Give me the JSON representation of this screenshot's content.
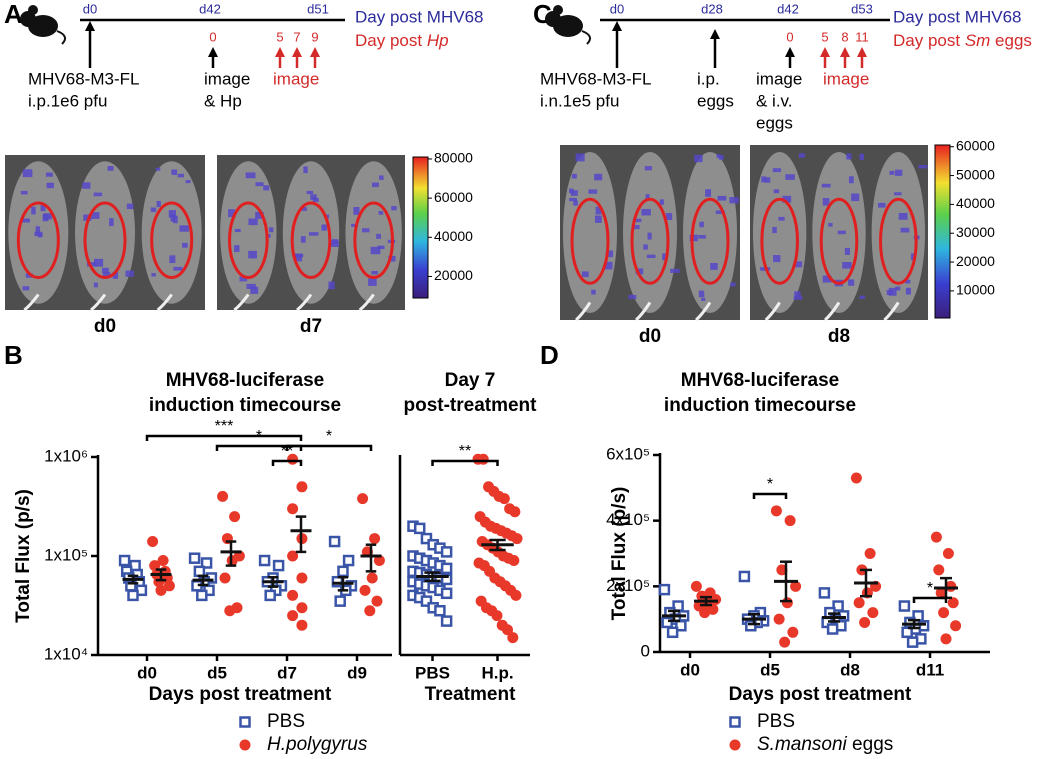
{
  "panel_labels": [
    "A",
    "B",
    "C",
    "D"
  ],
  "timelines": [
    {
      "days": [
        "d0",
        "d42",
        "d51"
      ],
      "legend_virus": "Day post MHV68",
      "legend_treatment": [
        "Day post ",
        "Hp"
      ],
      "treat_days": [
        "0",
        "5",
        "7",
        "9"
      ],
      "notes": [
        [
          "MHV68-M3-FL",
          "i.p.1e6 pfu"
        ],
        [
          "image",
          "& Hp"
        ]
      ],
      "image_note": "image",
      "images": [
        "d0",
        "d7"
      ],
      "colorbar": {
        "ylim": [
          9000,
          81000
        ],
        "yticks": [
          20000,
          40000,
          60000,
          80000
        ]
      }
    },
    {
      "days": [
        "d0",
        "d28",
        "d42",
        "d53"
      ],
      "legend_virus": "Day post MHV68",
      "legend_treatment": [
        "Day post ",
        "Sm",
        " eggs"
      ],
      "treat_days": [
        "0",
        "5",
        "8",
        "11"
      ],
      "notes": [
        [
          "MHV68-M3-FL",
          "i.n.1e5 pfu"
        ],
        [
          "i.p.",
          "eggs"
        ],
        [
          "image",
          "& i.v.",
          "eggs"
        ]
      ],
      "image_note": "image",
      "images": [
        "d0",
        "d8"
      ],
      "colorbar": {
        "ylim": [
          600,
          60600
        ],
        "yticks": [
          10000,
          20000,
          30000,
          40000,
          50000,
          60000
        ]
      }
    }
  ],
  "chart_data": [
    {
      "type": "dotplot",
      "title": [
        "MHV68-luciferase",
        "induction timecourse"
      ],
      "ylabel": "Total Flux (p/s)",
      "xlabel": "Days post treatment",
      "yscale": "log",
      "ylim": [
        10000,
        1000000
      ],
      "yticks": [
        {
          "value": 10000,
          "label": "1x10⁴"
        },
        {
          "value": 100000,
          "label": "1x10⁵"
        },
        {
          "value": 1000000,
          "label": "1x10⁶"
        }
      ],
      "categories": [
        "d0",
        "d5",
        "d7",
        "d9"
      ],
      "series": [
        {
          "name": "PBS",
          "color": "#3a55a8",
          "marker": "square",
          "values": [
            [
              90000,
              80000,
              70000,
              65000,
              60000,
              55000,
              50000,
              45000,
              40000
            ],
            [
              95000,
              85000,
              70000,
              60000,
              55000,
              50000,
              45000,
              40000
            ],
            [
              90000,
              80000,
              60000,
              55000,
              50000,
              45000,
              40000
            ],
            [
              140000,
              90000,
              70000,
              55000,
              50000,
              45000,
              35000
            ]
          ],
          "mean": [
            58000,
            57000,
            55000,
            53000
          ],
          "sem": [
            5000,
            6000,
            6000,
            8000
          ]
        },
        {
          "name": "H.polygyrus",
          "italic": true,
          "color": "#e8382a",
          "marker": "circle",
          "values": [
            [
              140000,
              90000,
              80000,
              70000,
              65000,
              60000,
              55000,
              50000,
              45000
            ],
            [
              400000,
              250000,
              150000,
              100000,
              90000,
              60000,
              30000,
              28000
            ],
            [
              950000,
              500000,
              300000,
              150000,
              100000,
              60000,
              40000,
              30000,
              25000,
              20000
            ],
            [
              380000,
              150000,
              110000,
              90000,
              60000,
              45000,
              35000,
              28000
            ]
          ],
          "mean": [
            65000,
            110000,
            180000,
            100000
          ],
          "sem": [
            8000,
            30000,
            70000,
            30000
          ]
        }
      ],
      "significance": [
        {
          "from": "d0",
          "to": "d7",
          "label": "***"
        },
        {
          "from": "d5",
          "to": "d7",
          "label": "*"
        },
        {
          "from": "d7",
          "to": "d7",
          "label": "**"
        },
        {
          "from": "d7",
          "to": "d9",
          "label": "*"
        }
      ]
    },
    {
      "type": "dotplot",
      "title": [
        "Day 7",
        "post-treatment"
      ],
      "xlabel": "Treatment",
      "yscale": "log",
      "ylim": [
        10000,
        1000000
      ],
      "categories": [
        "PBS",
        "H.p."
      ],
      "series": [
        {
          "color": "#3a55a8",
          "marker": "square",
          "values": [
            [
              200000,
              190000,
              150000,
              130000,
              120000,
              110000,
              100000,
              95000,
              90000,
              85000,
              80000,
              75000,
              70000,
              68000,
              65000,
              62000,
              60000,
              58000,
              55000,
              52000,
              50000,
              48000,
              45000,
              42000,
              40000,
              38000,
              35000,
              30000,
              28000,
              22000
            ],
            null
          ],
          "mean": [
            62000,
            null
          ],
          "sem": [
            6000,
            null
          ]
        },
        {
          "color": "#e8382a",
          "marker": "circle",
          "values": [
            null,
            [
              950000,
              950000,
              500000,
              450000,
              400000,
              380000,
              300000,
              280000,
              250000,
              220000,
              200000,
              190000,
              180000,
              170000,
              160000,
              150000,
              140000,
              130000,
              120000,
              110000,
              100000,
              95000,
              90000,
              85000,
              80000,
              70000,
              60000,
              55000,
              50000,
              45000,
              40000,
              35000,
              30000,
              28000,
              25000,
              20000,
              18000,
              15000
            ]
          ],
          "mean": [
            null,
            130000
          ],
          "sem": [
            null,
            15000
          ]
        }
      ],
      "significance": [
        {
          "from": "PBS",
          "to": "H.p.",
          "label": "**"
        }
      ]
    },
    {
      "type": "dotplot",
      "title": [
        "MHV68-luciferase",
        "induction timecourse"
      ],
      "ylabel": "Total Flux (p/s)",
      "xlabel": "Days post treatment",
      "ylim": [
        0,
        600000
      ],
      "yticks": [
        0,
        {
          "value": 200000,
          "label": "2x10⁵"
        },
        {
          "value": 400000,
          "label": "4x10⁵"
        },
        {
          "value": 600000,
          "label": "6x10⁵"
        }
      ],
      "categories": [
        "d0",
        "d5",
        "d8",
        "d11"
      ],
      "series": [
        {
          "name": "PBS",
          "color": "#3a55a8",
          "marker": "square",
          "values": [
            [
              190000,
              140000,
              120000,
              110000,
              100000,
              90000,
              80000,
              60000
            ],
            [
              230000,
              120000,
              110000,
              100000,
              95000,
              90000,
              80000
            ],
            [
              180000,
              140000,
              120000,
              110000,
              100000,
              90000,
              80000,
              70000
            ],
            [
              140000,
              110000,
              90000,
              80000,
              70000,
              60000,
              40000,
              30000
            ]
          ],
          "mean": [
            110000,
            100000,
            105000,
            85000
          ],
          "sem": [
            15000,
            15000,
            12000,
            12000
          ]
        },
        {
          "name": "S.mansoni eggs",
          "italic": true,
          "color": "#e8382a",
          "marker": "circle",
          "values": [
            [
              200000,
              180000,
              170000,
              160000,
              150000,
              140000,
              130000,
              120000
            ],
            [
              430000,
              400000,
              250000,
              200000,
              150000,
              100000,
              60000,
              30000
            ],
            [
              530000,
              300000,
              250000,
              200000,
              180000,
              150000,
              120000,
              90000
            ],
            [
              350000,
              300000,
              250000,
              200000,
              180000,
              150000,
              120000,
              80000,
              40000
            ]
          ],
          "mean": [
            155000,
            215000,
            210000,
            195000
          ],
          "sem": [
            12000,
            60000,
            40000,
            30000
          ]
        }
      ],
      "significance": [
        {
          "from": "d5",
          "to": "d5",
          "label": "*"
        },
        {
          "from": "d11",
          "to": "d11",
          "label": "*"
        }
      ]
    }
  ]
}
